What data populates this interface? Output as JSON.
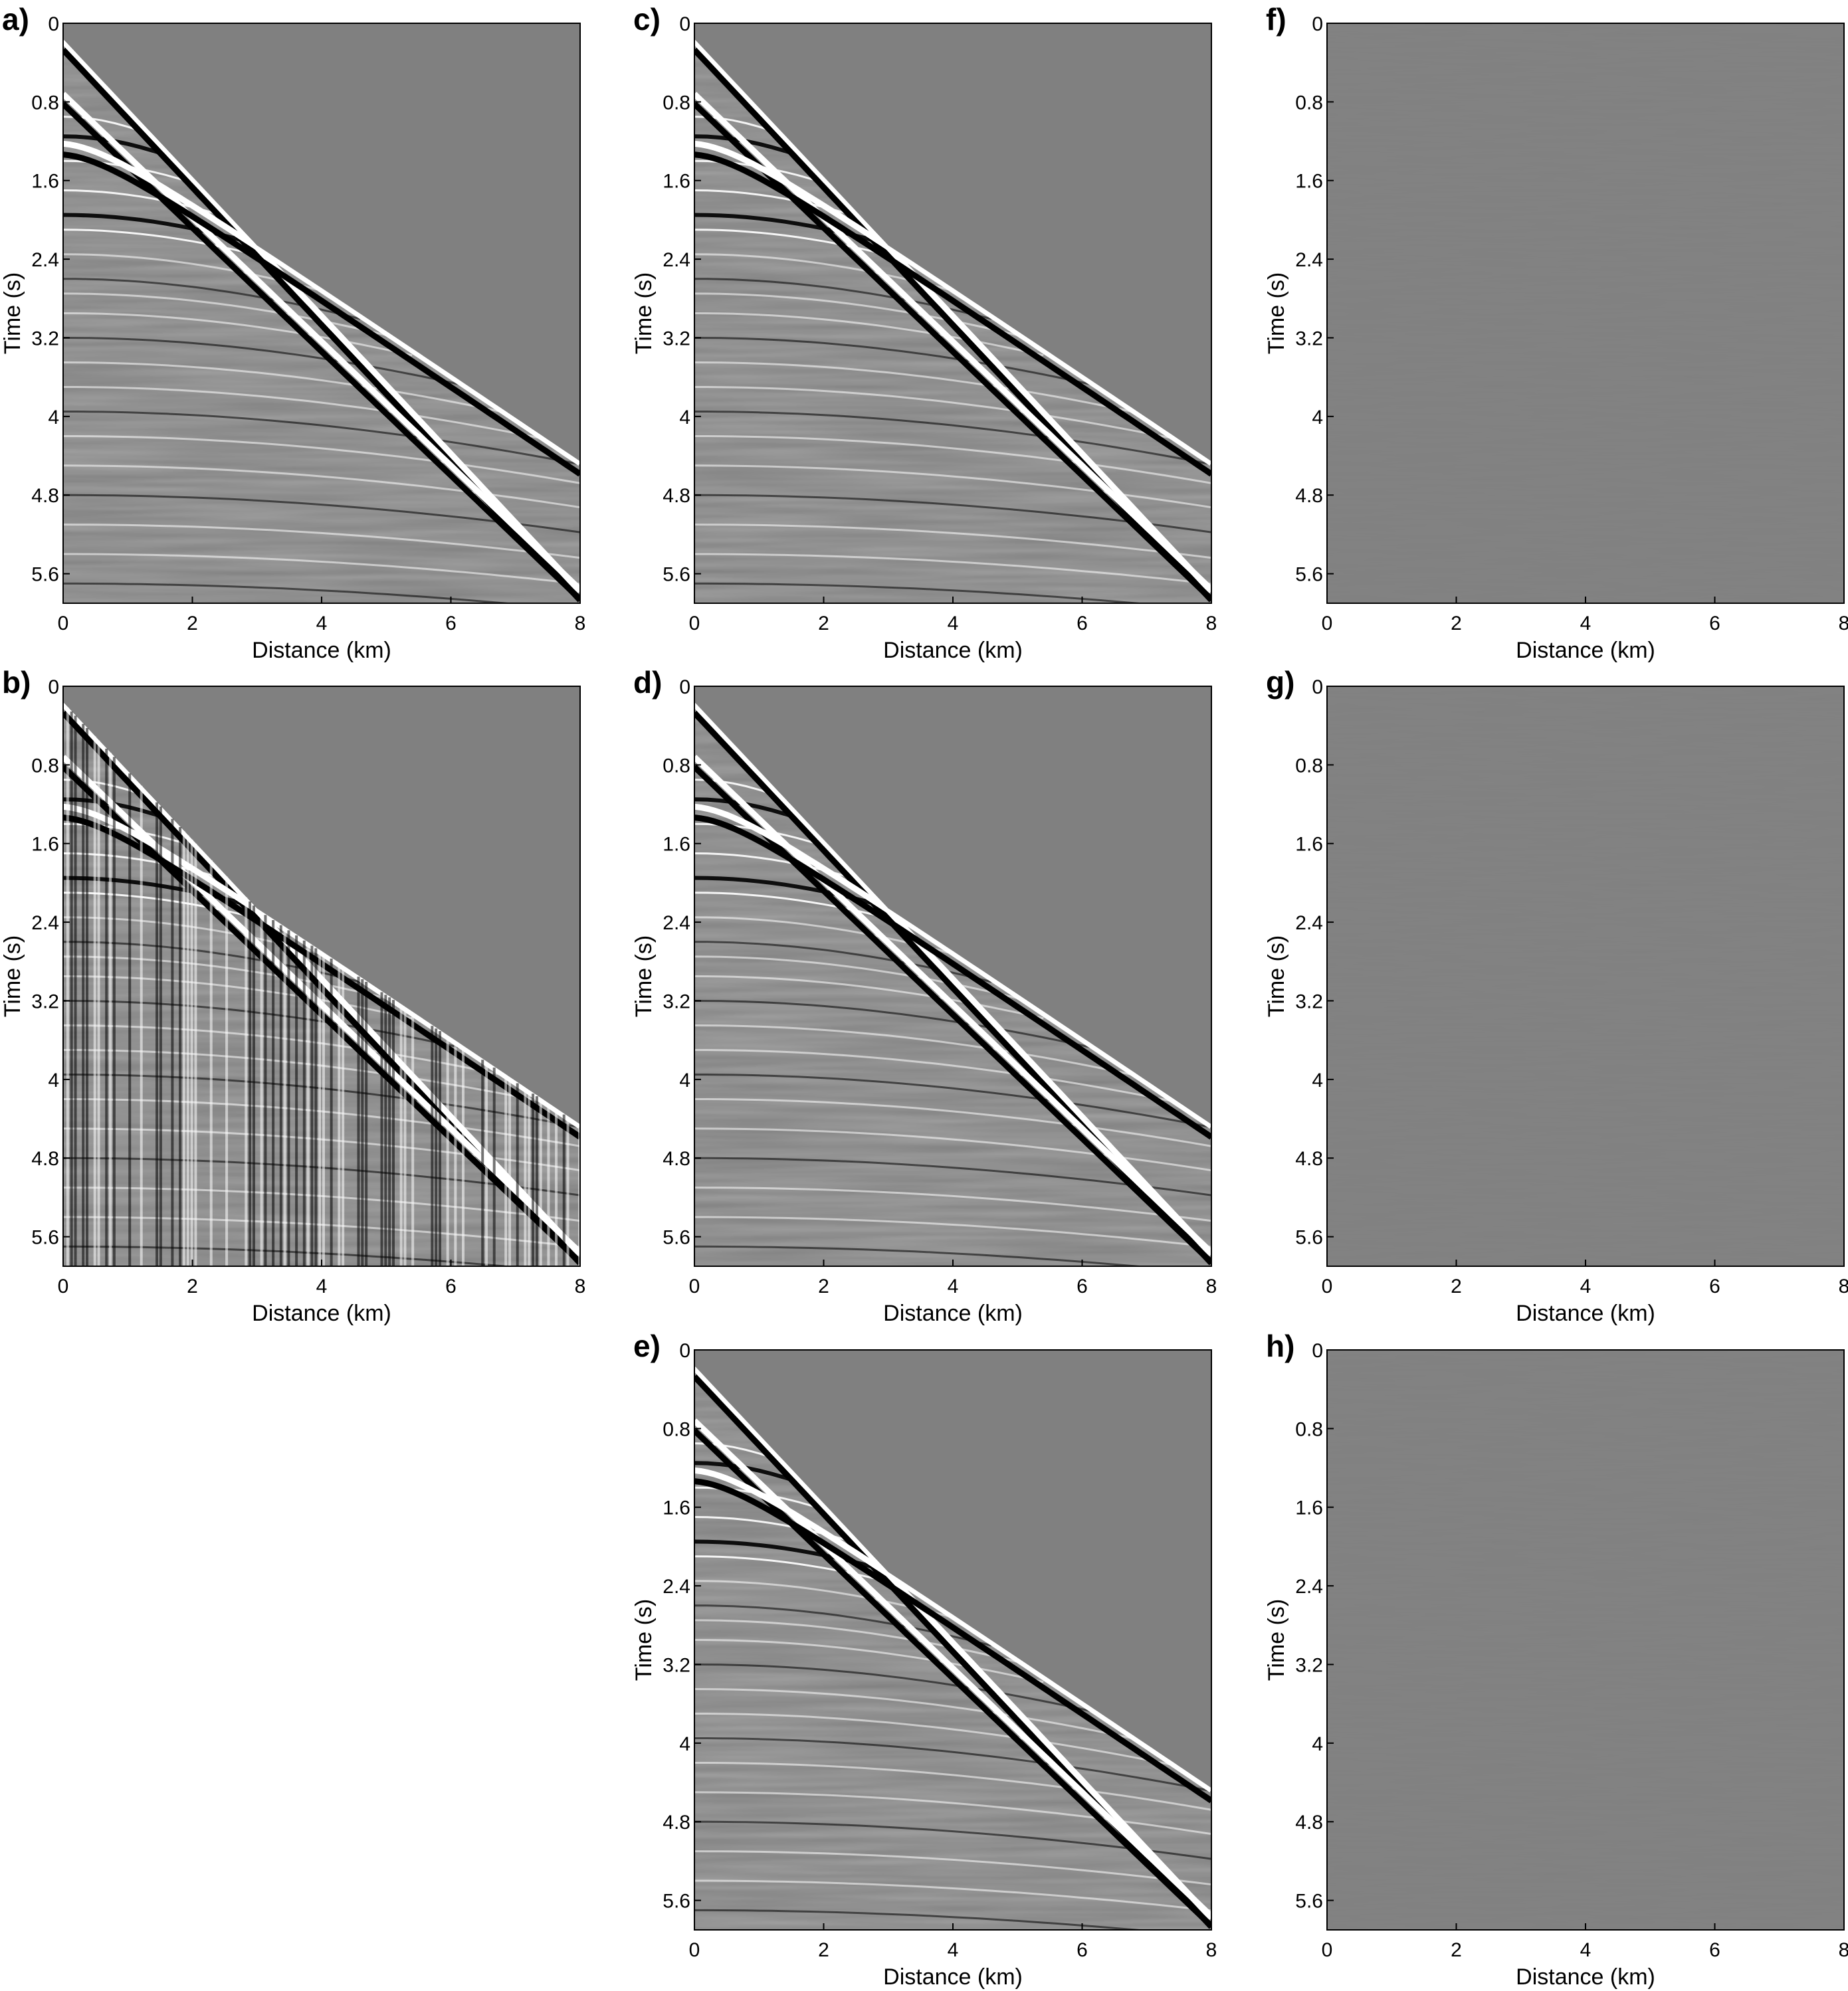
{
  "chart_data": [
    {
      "id": "a",
      "panel_label": "a)",
      "type": "heatmap",
      "content": "seismic-gather-full",
      "xlabel": "Distance (km)",
      "ylabel": "Time (s)",
      "xlim": [
        0,
        8
      ],
      "ylim": [
        0,
        5.9
      ],
      "y_reversed": true,
      "x_ticks": [
        0,
        2,
        4,
        6,
        8
      ],
      "y_ticks": [
        0,
        0.8,
        1.6,
        2.4,
        3.2,
        4,
        4.8,
        5.6
      ],
      "x_tick_labels": [
        "0",
        "2",
        "4",
        "6",
        "8"
      ],
      "y_tick_labels": [
        "0",
        "0.8",
        "1.6",
        "2.4",
        "3.2",
        "4",
        "4.8",
        "5.6"
      ],
      "colormap": "gray",
      "events_visible": true
    },
    {
      "id": "b",
      "panel_label": "b)",
      "type": "heatmap",
      "content": "seismic-gather-decimated",
      "xlabel": "Distance (km)",
      "ylabel": "Time (s)",
      "xlim": [
        0,
        8
      ],
      "ylim": [
        0,
        5.9
      ],
      "y_reversed": true,
      "x_ticks": [
        0,
        2,
        4,
        6,
        8
      ],
      "y_ticks": [
        0,
        0.8,
        1.6,
        2.4,
        3.2,
        4,
        4.8,
        5.6
      ],
      "x_tick_labels": [
        "0",
        "2",
        "4",
        "6",
        "8"
      ],
      "y_tick_labels": [
        "0",
        "0.8",
        "1.6",
        "2.4",
        "3.2",
        "4",
        "4.8",
        "5.6"
      ],
      "colormap": "gray",
      "events_visible": true
    },
    {
      "id": "c",
      "panel_label": "c)",
      "type": "heatmap",
      "content": "seismic-gather-reconstructed",
      "xlabel": "Distance (km)",
      "ylabel": "Time (s)",
      "xlim": [
        0,
        8
      ],
      "ylim": [
        0,
        5.9
      ],
      "y_reversed": true,
      "x_ticks": [
        0,
        2,
        4,
        6,
        8
      ],
      "y_ticks": [
        0,
        0.8,
        1.6,
        2.4,
        3.2,
        4,
        4.8,
        5.6
      ],
      "x_tick_labels": [
        "0",
        "2",
        "4",
        "6",
        "8"
      ],
      "y_tick_labels": [
        "0",
        "0.8",
        "1.6",
        "2.4",
        "3.2",
        "4",
        "4.8",
        "5.6"
      ],
      "colormap": "gray",
      "events_visible": true
    },
    {
      "id": "d",
      "panel_label": "d)",
      "type": "heatmap",
      "content": "seismic-gather-reconstructed",
      "xlabel": "Distance (km)",
      "ylabel": "Time (s)",
      "xlim": [
        0,
        8
      ],
      "ylim": [
        0,
        5.9
      ],
      "y_reversed": true,
      "x_ticks": [
        0,
        2,
        4,
        6,
        8
      ],
      "y_ticks": [
        0,
        0.8,
        1.6,
        2.4,
        3.2,
        4,
        4.8,
        5.6
      ],
      "x_tick_labels": [
        "0",
        "2",
        "4",
        "6",
        "8"
      ],
      "y_tick_labels": [
        "0",
        "0.8",
        "1.6",
        "2.4",
        "3.2",
        "4",
        "4.8",
        "5.6"
      ],
      "colormap": "gray",
      "events_visible": true
    },
    {
      "id": "e",
      "panel_label": "e)",
      "type": "heatmap",
      "content": "seismic-gather-reconstructed",
      "xlabel": "Distance (km)",
      "ylabel": "Time (s)",
      "xlim": [
        0,
        8
      ],
      "ylim": [
        0,
        5.9
      ],
      "y_reversed": true,
      "x_ticks": [
        0,
        2,
        4,
        6,
        8
      ],
      "y_ticks": [
        0,
        0.8,
        1.6,
        2.4,
        3.2,
        4,
        4.8,
        5.6
      ],
      "x_tick_labels": [
        "0",
        "2",
        "4",
        "6",
        "8"
      ],
      "y_tick_labels": [
        "0",
        "0.8",
        "1.6",
        "2.4",
        "3.2",
        "4",
        "4.8",
        "5.6"
      ],
      "colormap": "gray",
      "events_visible": true
    },
    {
      "id": "f",
      "panel_label": "f)",
      "type": "heatmap",
      "content": "residual-near-zero",
      "xlabel": "Distance (km)",
      "ylabel": "Time (s)",
      "xlim": [
        0,
        8
      ],
      "ylim": [
        0,
        5.9
      ],
      "y_reversed": true,
      "x_ticks": [
        0,
        2,
        4,
        6,
        8
      ],
      "y_ticks": [
        0,
        0.8,
        1.6,
        2.4,
        3.2,
        4,
        4.8,
        5.6
      ],
      "x_tick_labels": [
        "0",
        "2",
        "4",
        "6",
        "8"
      ],
      "y_tick_labels": [
        "0",
        "0.8",
        "1.6",
        "2.4",
        "3.2",
        "4",
        "4.8",
        "5.6"
      ],
      "colormap": "gray",
      "events_visible": false
    },
    {
      "id": "g",
      "panel_label": "g)",
      "type": "heatmap",
      "content": "residual-near-zero",
      "xlabel": "Distance (km)",
      "ylabel": "Time (s)",
      "xlim": [
        0,
        8
      ],
      "ylim": [
        0,
        5.9
      ],
      "y_reversed": true,
      "x_ticks": [
        0,
        2,
        4,
        6,
        8
      ],
      "y_ticks": [
        0,
        0.8,
        1.6,
        2.4,
        3.2,
        4,
        4.8,
        5.6
      ],
      "x_tick_labels": [
        "0",
        "2",
        "4",
        "6",
        "8"
      ],
      "y_tick_labels": [
        "0",
        "0.8",
        "1.6",
        "2.4",
        "3.2",
        "4",
        "4.8",
        "5.6"
      ],
      "colormap": "gray",
      "events_visible": false
    },
    {
      "id": "h",
      "panel_label": "h)",
      "type": "heatmap",
      "content": "residual-near-zero",
      "xlabel": "Distance (km)",
      "ylabel": "Time (s)",
      "xlim": [
        0,
        8
      ],
      "ylim": [
        0,
        5.9
      ],
      "y_reversed": true,
      "x_ticks": [
        0,
        2,
        4,
        6,
        8
      ],
      "y_ticks": [
        0,
        0.8,
        1.6,
        2.4,
        3.2,
        4,
        4.8,
        5.6
      ],
      "x_tick_labels": [
        "0",
        "2",
        "4",
        "6",
        "8"
      ],
      "y_tick_labels": [
        "0",
        "0.8",
        "1.6",
        "2.4",
        "3.2",
        "4",
        "4.8",
        "5.6"
      ],
      "colormap": "gray",
      "events_visible": false
    }
  ],
  "colors": {
    "background": "#808080",
    "frame": "#000000",
    "strong": "#000000",
    "light": "#ffffff"
  }
}
